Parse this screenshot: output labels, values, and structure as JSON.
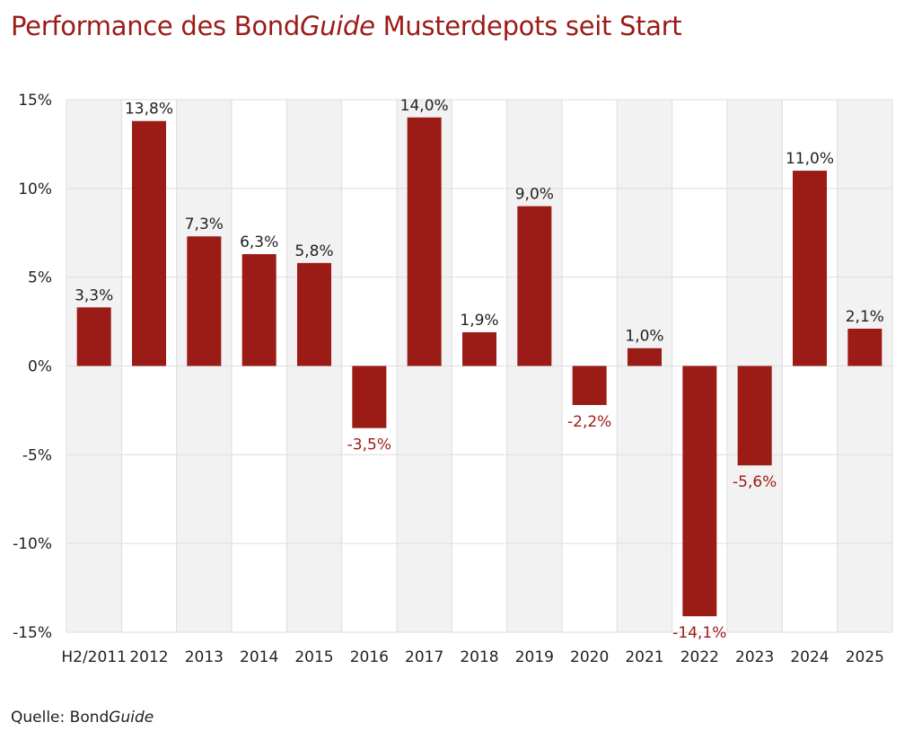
{
  "title": {
    "pre": "Performance des Bond",
    "italic": "Guide",
    "post": " Musterdepots seit Start"
  },
  "source": {
    "pre": "Quelle: Bond",
    "italic": "Guide"
  },
  "colors": {
    "bar": "#9b1b16",
    "negative_label": "#9b1b16",
    "positive_label": "#222222",
    "band": "#f2f2f2",
    "grid": "#dddddd"
  },
  "chart_data": {
    "type": "bar",
    "categories": [
      "H2/2011",
      "2012",
      "2013",
      "2014",
      "2015",
      "2016",
      "2017",
      "2018",
      "2019",
      "2020",
      "2021",
      "2022",
      "2023",
      "2024",
      "2025"
    ],
    "values": [
      3.3,
      13.8,
      7.3,
      6.3,
      5.8,
      -3.5,
      14.0,
      1.9,
      9.0,
      -2.2,
      1.0,
      -14.1,
      -5.6,
      11.0,
      2.1
    ],
    "labels": [
      "3,3%",
      "13,8%",
      "7,3%",
      "6,3%",
      "5,8%",
      "-3,5%",
      "14,0%",
      "1,9%",
      "9,0%",
      "-2,2%",
      "1,0%",
      "-14,1%",
      "-5,6%",
      "11,0%",
      "2,1%"
    ],
    "yticks": [
      15,
      10,
      5,
      0,
      -5,
      -10,
      -15
    ],
    "ytick_labels": [
      "15%",
      "10%",
      "5%",
      "0%",
      "-5%",
      "-10%",
      "-15%"
    ],
    "ylim": [
      -15,
      15
    ],
    "xlabel": "",
    "ylabel": "",
    "grid": true,
    "legend": "none"
  }
}
